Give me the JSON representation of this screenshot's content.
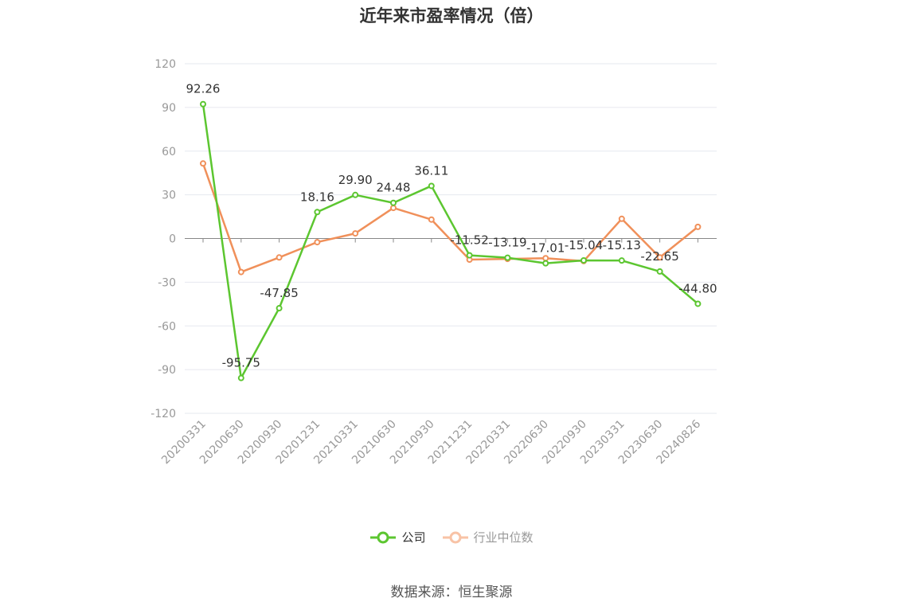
{
  "chart_data": {
    "type": "line",
    "title": "近年来市盈率情况（倍）",
    "categories": [
      "20200331",
      "20200630",
      "20200930",
      "20201231",
      "20210331",
      "20210630",
      "20210930",
      "20211231",
      "20220331",
      "20220630",
      "20220930",
      "20230331",
      "20230630",
      "20240826"
    ],
    "series": [
      {
        "name": "公司",
        "color": "#5cc630",
        "values": [
          92.26,
          -95.75,
          -47.85,
          18.16,
          29.9,
          24.48,
          36.11,
          -11.52,
          -13.19,
          -17.01,
          -15.04,
          -15.13,
          -22.65,
          -44.8
        ],
        "labels": [
          "92.26",
          "-95.75",
          "-47.85",
          "18.16",
          "29.90",
          "24.48",
          "36.11",
          "-11.52",
          "-13.19",
          "-17.01",
          "-15.04",
          "-15.13",
          "-22.65",
          "-44.80"
        ]
      },
      {
        "name": "行业中位数",
        "color": "#f0905a",
        "values": [
          51.5,
          -23.0,
          -13.0,
          -2.5,
          3.5,
          21.0,
          13.0,
          -14.5,
          -14.0,
          -13.5,
          -15.5,
          13.5,
          -13.0,
          8.0
        ]
      }
    ],
    "ylim": [
      -120,
      120
    ],
    "yticks": [
      "120",
      "90",
      "60",
      "30",
      "0",
      "-30",
      "-60",
      "-90",
      "-120"
    ],
    "grid": true,
    "legend_position": "bottom"
  },
  "source_text": "数据来源：恒生聚源"
}
